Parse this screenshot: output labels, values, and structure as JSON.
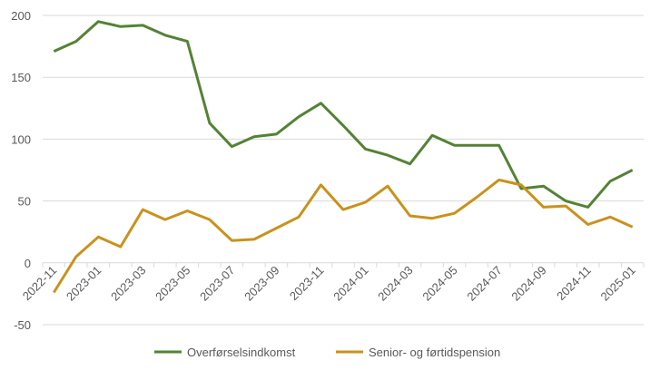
{
  "chart_data": {
    "type": "line",
    "categories": [
      "2022-11",
      "2022-12",
      "2023-01",
      "2023-02",
      "2023-03",
      "2023-04",
      "2023-05",
      "2023-06",
      "2023-07",
      "2023-08",
      "2023-09",
      "2023-10",
      "2023-11",
      "2023-12",
      "2024-01",
      "2024-02",
      "2024-03",
      "2024-04",
      "2024-05",
      "2024-06",
      "2024-07",
      "2024-08",
      "2024-09",
      "2024-10",
      "2024-11",
      "2024-12",
      "2025-01"
    ],
    "tick_labels": [
      "2022-11",
      "2023-01",
      "2023-03",
      "2023-05",
      "2023-07",
      "2023-09",
      "2023-11",
      "2024-01",
      "2024-03",
      "2024-05",
      "2024-07",
      "2024-09",
      "2024-11",
      "2025-01"
    ],
    "yticks": [
      200,
      150,
      100,
      50,
      0,
      -50
    ],
    "ylim": [
      -50,
      200
    ],
    "grid": true,
    "legend_position": "bottom",
    "series": [
      {
        "name": "Overførselsindkomst",
        "color": "#548235",
        "values": [
          171,
          179,
          195,
          191,
          192,
          184,
          179,
          113,
          94,
          102,
          104,
          118,
          129,
          111,
          92,
          87,
          80,
          103,
          95,
          95,
          95,
          60,
          62,
          50,
          45,
          66,
          75
        ]
      },
      {
        "name": "Senior- og førtidspension",
        "color": "#C9921E",
        "values": [
          -24,
          5,
          21,
          13,
          43,
          35,
          42,
          35,
          18,
          19,
          28,
          37,
          63,
          43,
          49,
          62,
          38,
          36,
          40,
          53,
          67,
          63,
          45,
          46,
          31,
          37,
          29
        ]
      }
    ]
  }
}
